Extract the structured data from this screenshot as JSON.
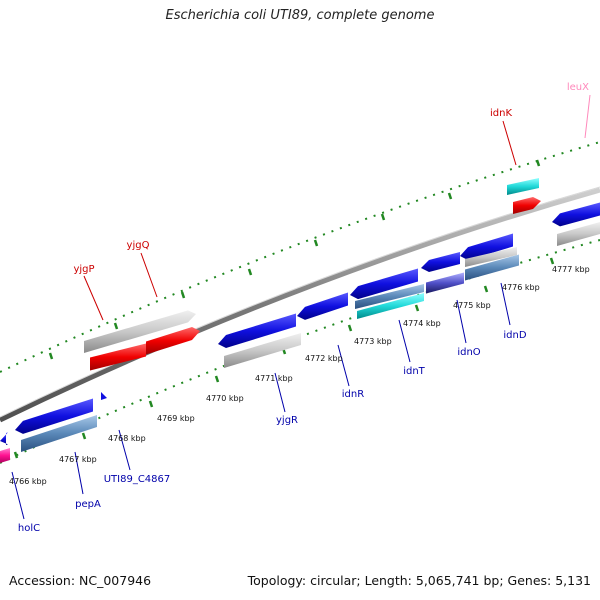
{
  "title": "Escherichia coli UTI89, complete genome",
  "footer": {
    "accession": "Accession: NC_007946",
    "summary": "Topology: circular; Length: 5,065,741 bp; Genes: 5,131"
  },
  "colors": {
    "forward_label": "#cc0000",
    "reverse_label": "#0000aa",
    "trna_label": "#ff88bb",
    "tick": "#228822",
    "backbone": "#888888"
  },
  "kbp_labels": [
    "4766 kbp",
    "4767 kbp",
    "4768 kbp",
    "4769 kbp",
    "4770 kbp",
    "4771 kbp",
    "4772 kbp",
    "4773 kbp",
    "4774 kbp",
    "4775 kbp",
    "4776 kbp",
    "4777 kbp"
  ],
  "gene_labels": {
    "leuX": "leuX",
    "idnK": "idnK",
    "yjgQ": "yjgQ",
    "yjgP": "yjgP",
    "holC": "holC",
    "pepA": "pepA",
    "UTI89_C4867": "UTI89_C4867",
    "yjgR": "yjgR",
    "idnR": "idnR",
    "idnT": "idnT",
    "idnO": "idnO",
    "idnD": "idnD"
  }
}
